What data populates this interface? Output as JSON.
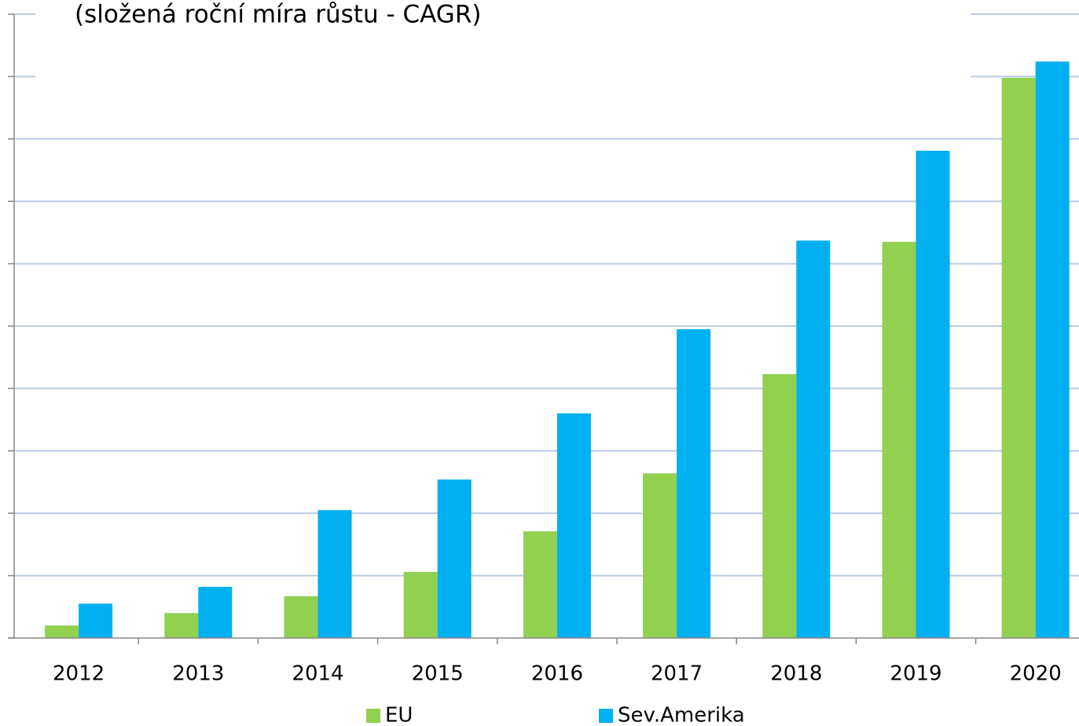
{
  "chart_data": {
    "type": "bar",
    "title": "(složená roční míra růstu - CAGR)",
    "categories": [
      "2012",
      "2013",
      "2014",
      "2015",
      "2016",
      "2017",
      "2018",
      "2019",
      "2020"
    ],
    "series": [
      {
        "name": "EU",
        "color": "#92d050",
        "values": [
          0.2,
          0.4,
          0.67,
          1.06,
          1.71,
          2.64,
          4.23,
          6.35,
          8.98
        ]
      },
      {
        "name": "Sev.Amerika",
        "color": "#00b0f0",
        "values": [
          0.55,
          0.82,
          2.05,
          2.54,
          3.6,
          4.95,
          6.37,
          7.81,
          9.24
        ]
      }
    ],
    "ylim": [
      0,
      10
    ],
    "yticks": [
      0,
      1,
      2,
      3,
      4,
      5,
      6,
      7,
      8,
      9,
      10
    ],
    "grid": true
  }
}
